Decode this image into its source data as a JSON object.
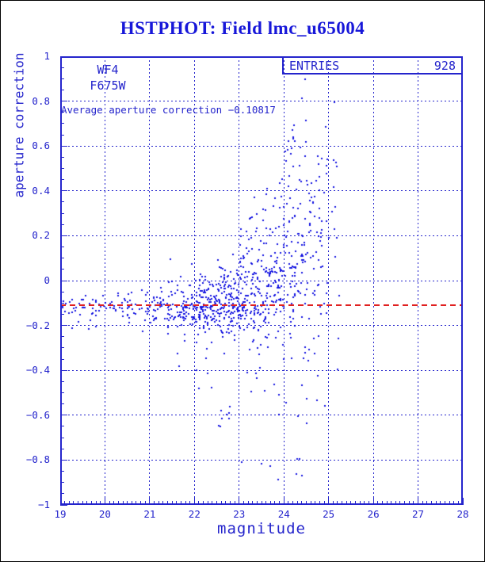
{
  "chart_data": {
    "type": "scatter",
    "title": "HSTPHOT: Field lmc_u65004",
    "xlabel": "magnitude",
    "ylabel": "aperture correction",
    "xlim": [
      19,
      28
    ],
    "ylim": [
      -1,
      1
    ],
    "x_ticks": [
      {
        "v": 19,
        "label": "19"
      },
      {
        "v": 20,
        "label": "20"
      },
      {
        "v": 21,
        "label": "21"
      },
      {
        "v": 22,
        "label": "22"
      },
      {
        "v": 23,
        "label": "23"
      },
      {
        "v": 24,
        "label": "24"
      },
      {
        "v": 25,
        "label": "25"
      },
      {
        "v": 26,
        "label": "26"
      },
      {
        "v": 27,
        "label": "27"
      },
      {
        "v": 28,
        "label": "28"
      }
    ],
    "x_minor_step": 0.1,
    "y_ticks": [
      {
        "v": 1,
        "label": "1"
      },
      {
        "v": 0.8,
        "label": "0.8"
      },
      {
        "v": 0.6,
        "label": "0.6"
      },
      {
        "v": 0.4,
        "label": "0.4"
      },
      {
        "v": 0.2,
        "label": "0.2"
      },
      {
        "v": 0,
        "label": "0"
      },
      {
        "v": -0.2,
        "label": "−0.2"
      },
      {
        "v": -0.4,
        "label": "−0.4"
      },
      {
        "v": -0.6,
        "label": "−0.6"
      },
      {
        "v": -0.8,
        "label": "−0.8"
      },
      {
        "v": -1,
        "label": "−1"
      }
    ],
    "y_minor_step": 0.05,
    "grid": "dotted lines at every major tick, both axes",
    "legend_position": "none",
    "stats_box": {
      "label": "ENTRIES",
      "value": "928"
    },
    "entries": 928,
    "detector_label": "WF4",
    "filter_label": "F675W",
    "average_text": "Average aperture correction −0.10817",
    "average_value": -0.10817,
    "colors": {
      "axes_and_text": "#2424cc",
      "points": "#1414e0",
      "average_line": "#e02020",
      "title": "#1717d9",
      "outer_frame": "#000000",
      "background": "#ffffff"
    },
    "point_marker": "2x2 px square",
    "seed": 42,
    "distribution_bins": [
      {
        "mag": [
          19.0,
          19.6
        ],
        "n": 24,
        "mean": -0.113,
        "sd": 0.022,
        "tail": {
          "frac": 0.08,
          "lo": -0.22,
          "hi": -0.05
        }
      },
      {
        "mag": [
          19.6,
          20.2
        ],
        "n": 26,
        "mean": -0.115,
        "sd": 0.028,
        "tail": {
          "frac": 0.08,
          "lo": -0.25,
          "hi": -0.04
        }
      },
      {
        "mag": [
          20.2,
          20.8
        ],
        "n": 30,
        "mean": -0.118,
        "sd": 0.032,
        "tail": {
          "frac": 0.08,
          "lo": -0.3,
          "hi": -0.03
        }
      },
      {
        "mag": [
          20.8,
          21.4
        ],
        "n": 44,
        "mean": -0.12,
        "sd": 0.04,
        "tail": {
          "frac": 0.08,
          "lo": -0.33,
          "hi": -0.02
        }
      },
      {
        "mag": [
          21.4,
          22.0
        ],
        "n": 90,
        "mean": -0.12,
        "sd": 0.05,
        "tail": {
          "frac": 0.1,
          "lo": -0.45,
          "hi": 0.0
        }
      },
      {
        "mag": [
          22.0,
          22.5
        ],
        "n": 124,
        "mean": -0.115,
        "sd": 0.06,
        "tail": {
          "frac": 0.1,
          "lo": -0.5,
          "hi": 0.03
        }
      },
      {
        "mag": [
          22.5,
          23.0
        ],
        "n": 136,
        "mean": -0.105,
        "sd": 0.08,
        "tail": {
          "frac": 0.12,
          "lo": -0.72,
          "hi": 0.1
        }
      },
      {
        "mag": [
          23.0,
          23.5
        ],
        "n": 134,
        "mean": -0.08,
        "sd": 0.1,
        "tail": {
          "frac": 0.14,
          "lo": -0.85,
          "hi": 0.3
        },
        "arm": {
          "frac": 0.06,
          "lo": 0.1,
          "hi": 0.45
        }
      },
      {
        "mag": [
          23.5,
          24.0
        ],
        "n": 124,
        "mean": -0.04,
        "sd": 0.12,
        "tail": {
          "frac": 0.15,
          "lo": -0.93,
          "hi": 0.5
        },
        "arm": {
          "frac": 0.12,
          "lo": 0.15,
          "hi": 0.8
        }
      },
      {
        "mag": [
          24.0,
          24.5
        ],
        "n": 112,
        "mean": 0.08,
        "sd": 0.18,
        "tail": {
          "frac": 0.15,
          "lo": -0.9,
          "hi": 0.9
        },
        "arm": {
          "frac": 0.2,
          "lo": 0.3,
          "hi": 0.93
        }
      },
      {
        "mag": [
          24.5,
          25.0
        ],
        "n": 70,
        "mean": 0.12,
        "sd": 0.22,
        "tail": {
          "frac": 0.2,
          "lo": -0.8,
          "hi": 0.9
        },
        "arm": {
          "frac": 0.15,
          "lo": 0.3,
          "hi": 0.85
        }
      },
      {
        "mag": [
          25.0,
          25.25
        ],
        "n": 14,
        "mean": 0.1,
        "sd": 0.3,
        "tail": {
          "frac": 0.3,
          "lo": -0.6,
          "hi": 0.8
        }
      }
    ]
  }
}
